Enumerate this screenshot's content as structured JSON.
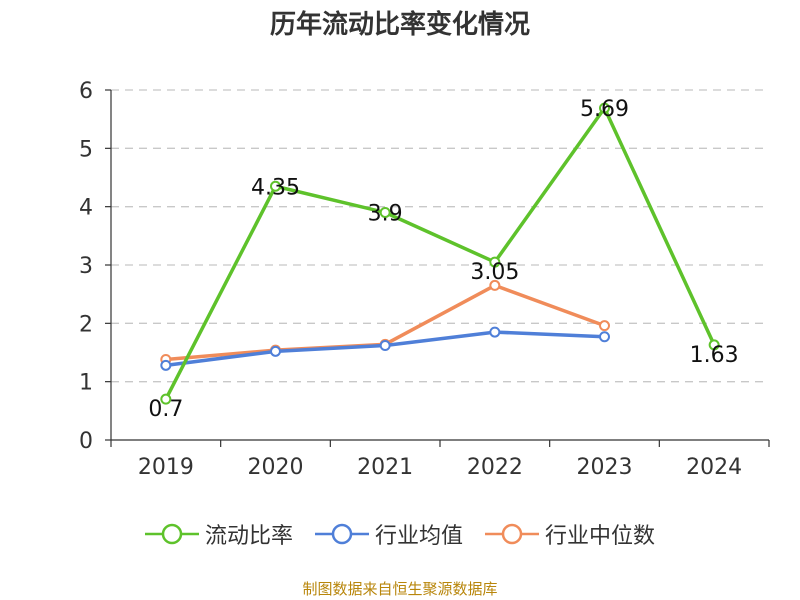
{
  "chart_data": {
    "type": "line",
    "title": "历年流动比率变化情况",
    "categories": [
      "2019",
      "2020",
      "2021",
      "2022",
      "2023",
      "2024"
    ],
    "ylim": [
      0,
      6
    ],
    "yticks": [
      "0",
      "1",
      "2",
      "3",
      "4",
      "5",
      "6"
    ],
    "grid": true,
    "legend_position": "bottom",
    "series": [
      {
        "name": "流动比率",
        "color": "#5ec22b",
        "values": [
          0.7,
          4.35,
          3.9,
          3.05,
          5.69,
          1.63
        ],
        "labels": [
          "0.7",
          "4.35",
          "3.9",
          "3.05",
          "5.69",
          "1.63"
        ]
      },
      {
        "name": "行业均值",
        "color": "#4f7fd8",
        "values": [
          1.28,
          1.52,
          1.62,
          1.85,
          1.77,
          null
        ]
      },
      {
        "name": "行业中位数",
        "color": "#f08c5a",
        "values": [
          1.38,
          1.54,
          1.64,
          2.65,
          1.96,
          null
        ]
      }
    ]
  },
  "footer": {
    "source": "制图数据来自恒生聚源数据库"
  }
}
